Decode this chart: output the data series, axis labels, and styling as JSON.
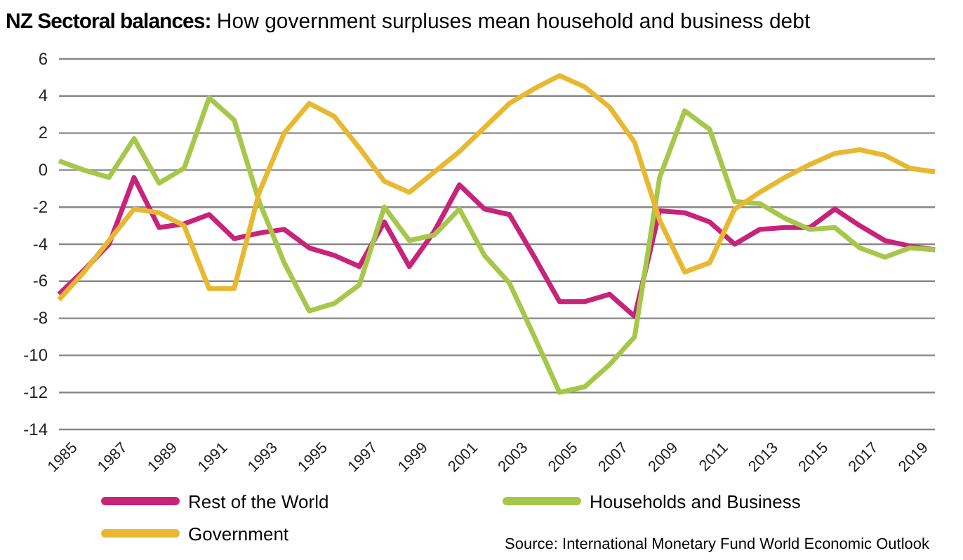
{
  "chart_data": {
    "type": "line",
    "title": "NZ Sectoral balances:",
    "subtitle": "How government surpluses mean household and business debt",
    "x": [
      1985,
      1986,
      1987,
      1988,
      1989,
      1990,
      1991,
      1992,
      1993,
      1994,
      1995,
      1996,
      1997,
      1998,
      1999,
      2000,
      2001,
      2002,
      2003,
      2004,
      2005,
      2006,
      2007,
      2008,
      2009,
      2010,
      2011,
      2012,
      2013,
      2014,
      2015,
      2016,
      2017,
      2018,
      2019,
      2020
    ],
    "series": [
      {
        "name": "Rest of the World",
        "color": "#c8237a",
        "values": [
          -6.7,
          -5.4,
          -4.0,
          -0.4,
          -3.1,
          -2.9,
          -2.4,
          -3.7,
          -3.4,
          -3.2,
          -4.2,
          -4.6,
          -5.2,
          -2.8,
          -5.2,
          -3.3,
          -0.8,
          -2.1,
          -2.4,
          -4.7,
          -7.1,
          -7.1,
          -6.7,
          -7.9,
          -2.2,
          -2.3,
          -2.8,
          -4.0,
          -3.2,
          -3.1,
          -3.1,
          -2.1,
          -3.0,
          -3.8,
          -4.1,
          -4.3
        ]
      },
      {
        "name": "Households and Business",
        "color": "#a6c84a",
        "values": [
          0.5,
          0,
          -0.4,
          1.7,
          -0.7,
          0.1,
          3.9,
          2.7,
          -1.7,
          -5.0,
          -7.6,
          -7.2,
          -6.2,
          -2.0,
          -3.8,
          -3.5,
          -2.1,
          -4.6,
          -6.1,
          -9.0,
          -12.0,
          -11.7,
          -10.5,
          -9.0,
          -0.4,
          3.2,
          2.2,
          -1.7,
          -1.8,
          -2.6,
          -3.2,
          -3.1,
          -4.2,
          -4.7,
          -4.2,
          -4.3
        ]
      },
      {
        "name": "Government",
        "color": "#e8b830",
        "values": [
          -7.0,
          -5.5,
          -3.8,
          -2.1,
          -2.3,
          -3.0,
          -6.4,
          -6.4,
          -1.2,
          2.0,
          3.6,
          2.9,
          1.2,
          -0.6,
          -1.2,
          -0.1,
          1.0,
          2.3,
          3.6,
          4.4,
          5.1,
          4.5,
          3.4,
          1.5,
          -2.7,
          -5.5,
          -5.0,
          -2.1,
          -1.2,
          -0.4,
          0.3,
          0.9,
          1.1,
          0.8,
          0.1,
          -0.1
        ]
      }
    ],
    "xlim": [
      1985,
      2020
    ],
    "xticks": [
      1985,
      1987,
      1989,
      1991,
      1993,
      1995,
      1997,
      1999,
      2001,
      2003,
      2005,
      2007,
      2009,
      2011,
      2013,
      2015,
      2017,
      2019
    ],
    "ylim": [
      -14,
      6
    ],
    "yticks": [
      -14,
      -12,
      -10,
      -8,
      -6,
      -4,
      -2,
      0,
      2,
      4,
      6
    ],
    "grid": "y",
    "legend": "bottom",
    "marker": "none",
    "line_style": "solid",
    "annotations": [
      "Source: International Monetary Fund World Economic Outlook"
    ]
  }
}
